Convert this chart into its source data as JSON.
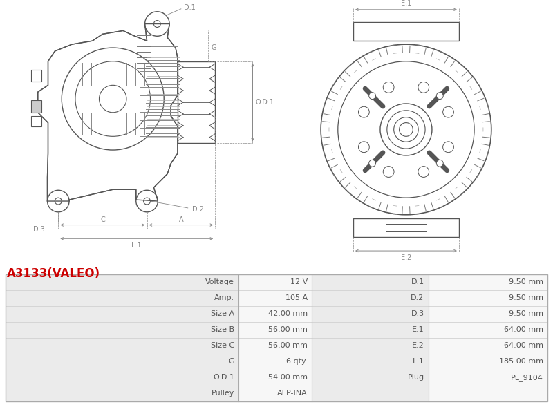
{
  "title": "A3133(VALEO)",
  "title_color": "#cc0000",
  "table_data": [
    [
      "Voltage",
      "12 V",
      "D.1",
      "9.50 mm"
    ],
    [
      "Amp.",
      "105 A",
      "D.2",
      "9.50 mm"
    ],
    [
      "Size A",
      "42.00 mm",
      "D.3",
      "9.50 mm"
    ],
    [
      "Size B",
      "56.00 mm",
      "E.1",
      "64.00 mm"
    ],
    [
      "Size C",
      "56.00 mm",
      "E.2",
      "64.00 mm"
    ],
    [
      "G",
      "6 qty.",
      "L.1",
      "185.00 mm"
    ],
    [
      "O.D.1",
      "54.00 mm",
      "Plug",
      "PL_9104"
    ],
    [
      "Pulley",
      "AFP-INA",
      "",
      ""
    ]
  ],
  "bg_color": "#ffffff",
  "line_color": "#555555",
  "dim_color": "#888888",
  "label_color": "#555555"
}
